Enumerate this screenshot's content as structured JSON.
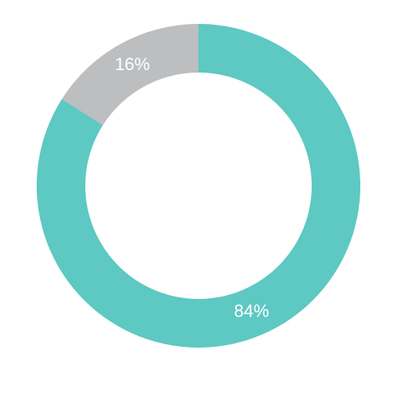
{
  "chart_data": {
    "type": "pie",
    "donut": true,
    "start_angle": "top",
    "direction": "clockwise",
    "slices": [
      {
        "value": 84,
        "label": "84%",
        "color": "#5EC8C3"
      },
      {
        "value": 16,
        "label": "16%",
        "color": "#BCBEC0"
      }
    ]
  }
}
